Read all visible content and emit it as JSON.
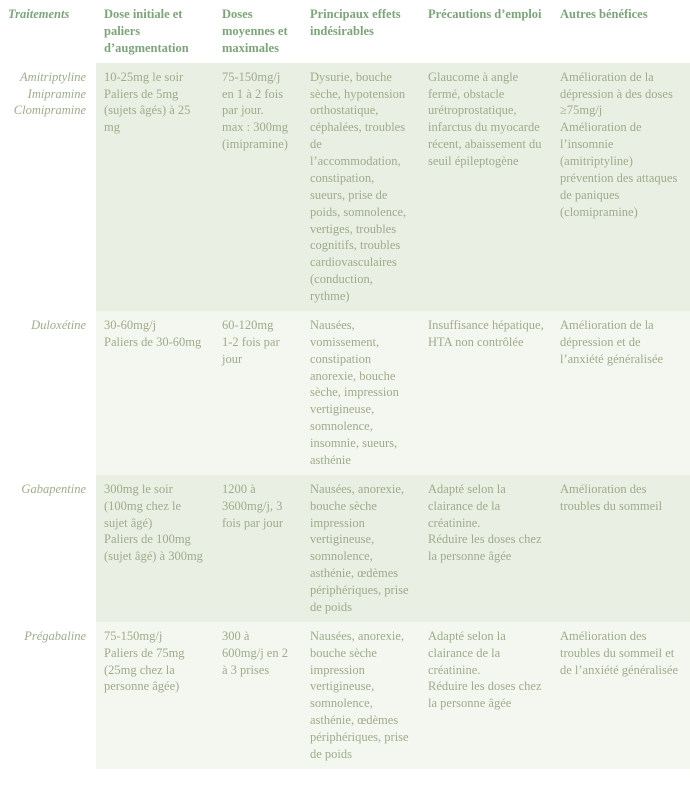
{
  "colors": {
    "header_text": "#7da47a",
    "body_text": "#9eac8c",
    "row_odd_bg": "#e9efe2",
    "row_even_bg": "#f4f7ef",
    "page_bg": "#ffffff"
  },
  "typography": {
    "font_family": "Times New Roman",
    "header_fontsize": 12.5,
    "body_fontsize": 12.5,
    "header_bold": true,
    "treatment_italic": true
  },
  "columns": [
    "Traitements",
    "Dose initiale et paliers d’augmentation",
    "Doses moyennes et maximales",
    "Principaux effets indésirables",
    "Précautions d’emploi",
    "Autres bénéfices"
  ],
  "rows": [
    {
      "treatment": "Amitriptyline\nImipramine\nClomipramine",
      "dose_init": "10-25mg le soir\nPaliers de 5mg (sujets âgés) à 25 mg",
      "dose_moy": "75-150mg/j en 1 à 2 fois par jour.\nmax : 300mg (imipramine)",
      "effets": "Dysurie, bouche sèche, hypotension orthostatique, céphalées, troubles de l’accommodation, constipation, sueurs, prise de poids, somnolence, vertiges, troubles cognitifs, troubles cardiovasculaires (conduction, rythme)",
      "precautions": "Glaucome à angle fermé, obstacle urétroprostatique, infarctus du myocarde récent, abaissement du seuil épileptogène",
      "benefices": "Amélioration de la dépression à des doses ≥75mg/j\nAmélioration de l’insomnie (amitriptyline) prévention des attaques de paniques (clomipramine)"
    },
    {
      "treatment": "Duloxétine",
      "dose_init": "30-60mg/j\nPaliers de 30-60mg",
      "dose_moy": "60-120mg\n1-2 fois par jour",
      "effets": "Nausées, vomissement, constipation anorexie, bouche sèche, impression vertigineuse, somnolence, insomnie, sueurs, asthénie",
      "precautions": "Insuffisance hépatique, HTA non contrôlée",
      "benefices": "Amélioration de la dépression et de l’anxiété généralisée"
    },
    {
      "treatment": "Gabapentine",
      "dose_init": "300mg le soir (100mg chez le sujet âgé)\nPaliers de 100mg (sujet âgé) à 300mg",
      "dose_moy": "1200 à 3600mg/j, 3 fois par jour",
      "effets": "Nausées, anorexie, bouche sèche impression vertigineuse, somnolence, asthénie, œdèmes périphériques, prise de poids",
      "precautions": "Adapté selon la clairance de la créatinine.\nRéduire les doses chez la personne âgée",
      "benefices": "Amélioration des troubles du sommeil"
    },
    {
      "treatment": "Prégabaline",
      "dose_init": "75-150mg/j\nPaliers de 75mg (25mg chez la personne âgée)",
      "dose_moy": "300 à 600mg/j en 2 à 3 prises",
      "effets": "Nausées, anorexie, bouche sèche impression vertigineuse, somnolence, asthénie, œdèmes périphériques, prise de poids",
      "precautions": "Adapté selon la clairance de la créatinine.\nRéduire les doses chez la personne âgée",
      "benefices": "Amélioration des troubles du sommeil et de l’anxiété généralisée"
    }
  ]
}
